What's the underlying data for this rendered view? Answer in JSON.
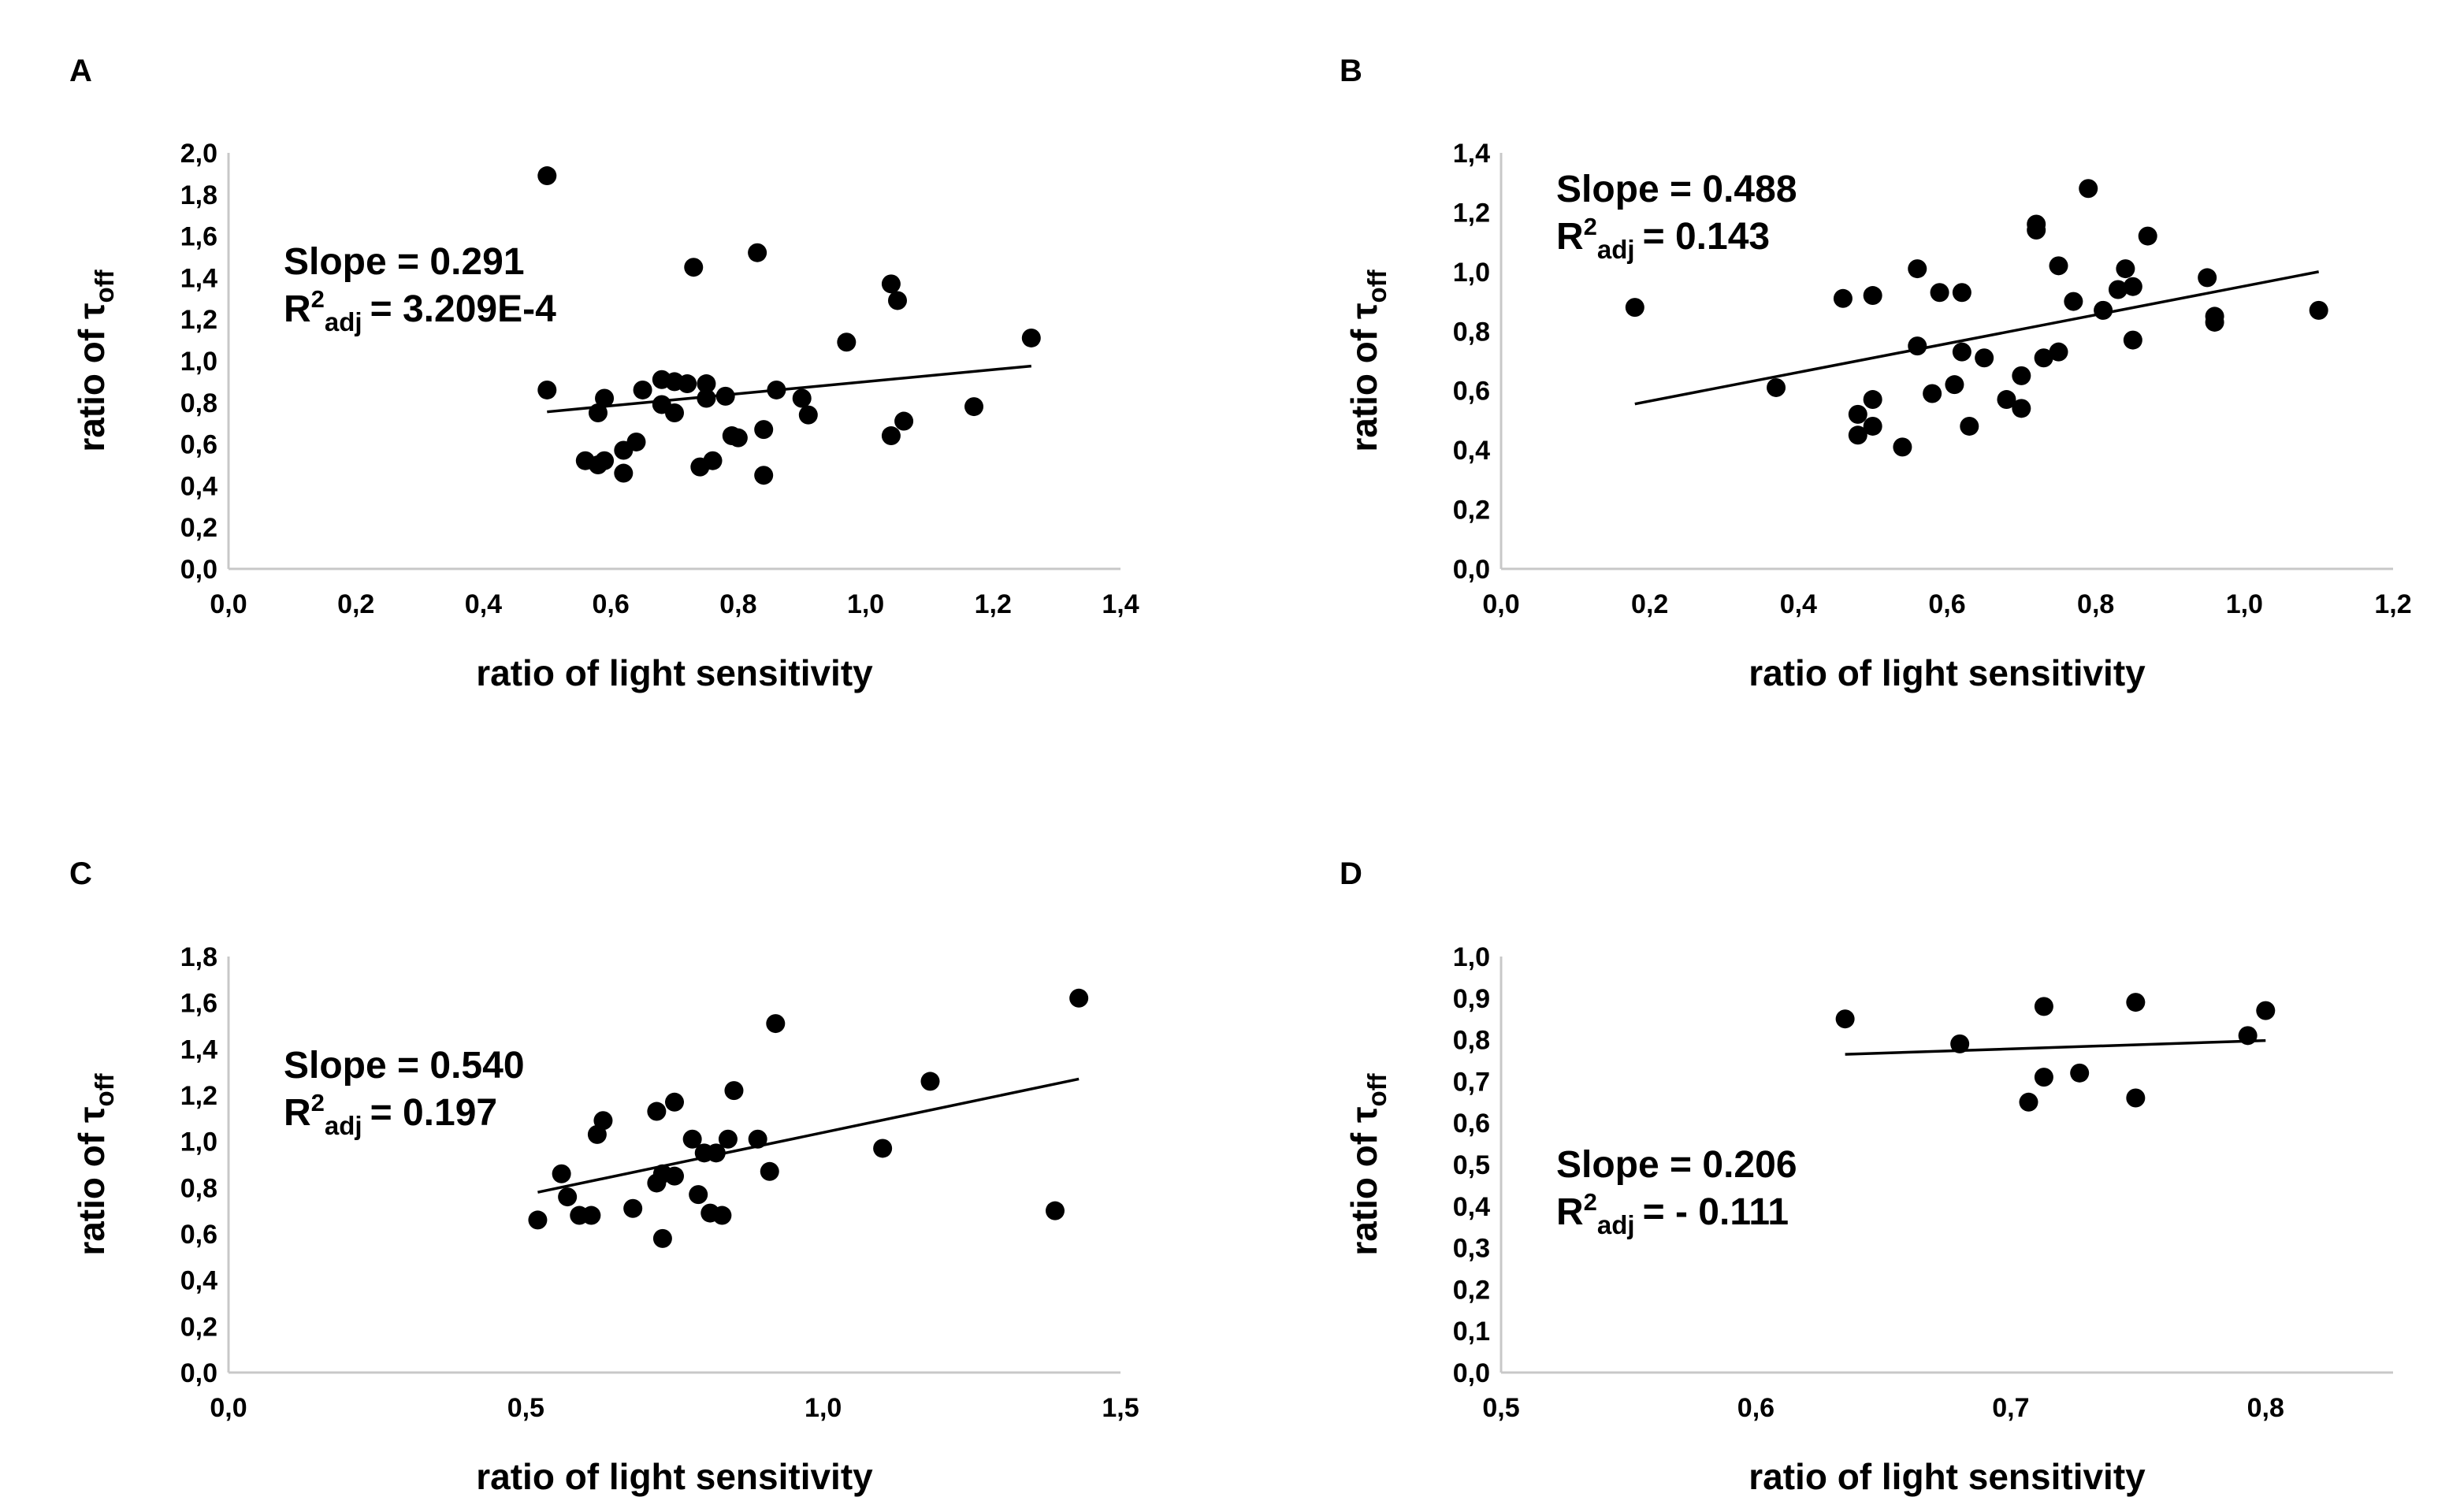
{
  "chart_data": [
    {
      "panel": "A",
      "type": "scatter",
      "xlabel": "ratio of light sensitivity",
      "ylabel": {
        "main": "ratio of τ",
        "sub": "off"
      },
      "xlim": [
        0,
        1.4
      ],
      "ylim": [
        0,
        2.0
      ],
      "xticks": [
        "0,0",
        "0,2",
        "0,4",
        "0,6",
        "0,8",
        "1,0",
        "1,2",
        "1,4"
      ],
      "yticks": [
        "0,0",
        "0,2",
        "0,4",
        "0,6",
        "0,8",
        "1,0",
        "1,2",
        "1,4",
        "1,6",
        "1,8",
        "2,0"
      ],
      "slope_text": "Slope = 0.291",
      "r2": {
        "label": "R",
        "sup": "2",
        "sub": "adj",
        "value": "= 3.209E-4"
      },
      "annot_pos": "upper-left",
      "trend": {
        "x": [
          0.5,
          1.26
        ],
        "y": [
          0.755,
          0.975
        ]
      },
      "points": [
        [
          0.5,
          1.89
        ],
        [
          0.5,
          0.86
        ],
        [
          0.56,
          0.52
        ],
        [
          0.58,
          0.5
        ],
        [
          0.58,
          0.75
        ],
        [
          0.59,
          0.52
        ],
        [
          0.59,
          0.82
        ],
        [
          0.62,
          0.46
        ],
        [
          0.62,
          0.57
        ],
        [
          0.64,
          0.61
        ],
        [
          0.65,
          0.86
        ],
        [
          0.68,
          0.79
        ],
        [
          0.68,
          0.91
        ],
        [
          0.7,
          0.9
        ],
        [
          0.7,
          0.75
        ],
        [
          0.72,
          0.89
        ],
        [
          0.73,
          1.45
        ],
        [
          0.74,
          0.49
        ],
        [
          0.75,
          0.89
        ],
        [
          0.75,
          0.82
        ],
        [
          0.76,
          0.52
        ],
        [
          0.78,
          0.83
        ],
        [
          0.79,
          0.64
        ],
        [
          0.8,
          0.63
        ],
        [
          0.83,
          1.52
        ],
        [
          0.84,
          0.45
        ],
        [
          0.84,
          0.67
        ],
        [
          0.86,
          0.86
        ],
        [
          0.9,
          0.82
        ],
        [
          0.91,
          0.74
        ],
        [
          0.97,
          1.09
        ],
        [
          1.04,
          1.37
        ],
        [
          1.04,
          0.64
        ],
        [
          1.05,
          1.29
        ],
        [
          1.06,
          0.71
        ],
        [
          1.17,
          0.78
        ],
        [
          1.26,
          1.11
        ]
      ]
    },
    {
      "panel": "B",
      "type": "scatter",
      "xlabel": "ratio of light sensitivity",
      "ylabel": {
        "main": "ratio of τ",
        "sub": "off"
      },
      "xlim": [
        0,
        1.2
      ],
      "ylim": [
        0,
        1.4
      ],
      "xticks": [
        "0,0",
        "0,2",
        "0,4",
        "0,6",
        "0,8",
        "1,0",
        "1,2"
      ],
      "yticks": [
        "0,0",
        "0,2",
        "0,4",
        "0,6",
        "0,8",
        "1,0",
        "1,2",
        "1,4"
      ],
      "slope_text": "Slope = 0.488",
      "r2": {
        "label": "R",
        "sup": "2",
        "sub": "adj",
        "value": "= 0.143"
      },
      "annot_pos": "upper-left",
      "trend": {
        "x": [
          0.18,
          1.1
        ],
        "y": [
          0.555,
          1.0
        ]
      },
      "points": [
        [
          0.18,
          0.88
        ],
        [
          0.37,
          0.61
        ],
        [
          0.46,
          0.91
        ],
        [
          0.48,
          0.45
        ],
        [
          0.48,
          0.52
        ],
        [
          0.5,
          0.48
        ],
        [
          0.5,
          0.57
        ],
        [
          0.5,
          0.92
        ],
        [
          0.54,
          0.41
        ],
        [
          0.56,
          0.75
        ],
        [
          0.56,
          1.01
        ],
        [
          0.58,
          0.59
        ],
        [
          0.59,
          0.93
        ],
        [
          0.61,
          0.62
        ],
        [
          0.62,
          0.93
        ],
        [
          0.62,
          0.73
        ],
        [
          0.63,
          0.48
        ],
        [
          0.65,
          0.71
        ],
        [
          0.68,
          0.57
        ],
        [
          0.7,
          0.54
        ],
        [
          0.7,
          0.65
        ],
        [
          0.72,
          1.16
        ],
        [
          0.72,
          1.14
        ],
        [
          0.73,
          0.71
        ],
        [
          0.75,
          0.73
        ],
        [
          0.75,
          1.02
        ],
        [
          0.77,
          0.9
        ],
        [
          0.79,
          1.28
        ],
        [
          0.81,
          0.87
        ],
        [
          0.83,
          0.94
        ],
        [
          0.84,
          1.01
        ],
        [
          0.85,
          0.95
        ],
        [
          0.85,
          0.77
        ],
        [
          0.87,
          1.12
        ],
        [
          0.95,
          0.98
        ],
        [
          0.96,
          0.85
        ],
        [
          0.96,
          0.83
        ],
        [
          1.1,
          0.87
        ]
      ]
    },
    {
      "panel": "C",
      "type": "scatter",
      "xlabel": "ratio of light sensitivity",
      "ylabel": {
        "main": "ratio of τ",
        "sub": "off"
      },
      "xlim": [
        0,
        1.5
      ],
      "ylim": [
        0,
        1.8
      ],
      "xticks": [
        "0,0",
        "0,5",
        "1,0",
        "1,5"
      ],
      "yticks": [
        "0,0",
        "0,2",
        "0,4",
        "0,6",
        "0,8",
        "1,0",
        "1,2",
        "1,4",
        "1,6",
        "1,8"
      ],
      "slope_text": "Slope = 0.540",
      "r2": {
        "label": "R",
        "sup": "2",
        "sub": "adj",
        "value": "= 0.197"
      },
      "annot_pos": "upper-left",
      "trend": {
        "x": [
          0.52,
          1.43
        ],
        "y": [
          0.78,
          1.27
        ]
      },
      "points": [
        [
          0.52,
          0.66
        ],
        [
          0.56,
          0.86
        ],
        [
          0.57,
          0.76
        ],
        [
          0.59,
          0.68
        ],
        [
          0.61,
          0.68
        ],
        [
          0.62,
          1.03
        ],
        [
          0.63,
          1.09
        ],
        [
          0.68,
          0.71
        ],
        [
          0.72,
          1.13
        ],
        [
          0.72,
          0.82
        ],
        [
          0.73,
          0.86
        ],
        [
          0.73,
          0.58
        ],
        [
          0.75,
          1.17
        ],
        [
          0.75,
          0.85
        ],
        [
          0.78,
          1.01
        ],
        [
          0.79,
          0.77
        ],
        [
          0.8,
          0.95
        ],
        [
          0.81,
          0.69
        ],
        [
          0.82,
          0.95
        ],
        [
          0.83,
          0.68
        ],
        [
          0.84,
          1.01
        ],
        [
          0.85,
          1.22
        ],
        [
          0.89,
          1.01
        ],
        [
          0.91,
          0.87
        ],
        [
          0.92,
          1.51
        ],
        [
          1.1,
          0.97
        ],
        [
          1.18,
          1.26
        ],
        [
          1.39,
          0.7
        ],
        [
          1.43,
          1.62
        ]
      ]
    },
    {
      "panel": "D",
      "type": "scatter",
      "xlabel": "ratio of light sensitivity",
      "ylabel": {
        "main": "ratio of τ",
        "sub": "off"
      },
      "xlim": [
        0.5,
        0.85
      ],
      "ylim": [
        0,
        1.0
      ],
      "xticks": [
        "0,5",
        "0,6",
        "0,7",
        "0,8"
      ],
      "xtick_values": [
        0.5,
        0.6,
        0.7,
        0.8
      ],
      "yticks": [
        "0,0",
        "0,1",
        "0,2",
        "0,3",
        "0,4",
        "0,5",
        "0,6",
        "0,7",
        "0,8",
        "0,9",
        "1,0"
      ],
      "slope_text": "Slope = 0.206",
      "r2": {
        "label": "R",
        "sup": "2",
        "sub": "adj",
        "value": "= - 0.111"
      },
      "annot_pos": "lower-left",
      "trend": {
        "x": [
          0.635,
          0.8
        ],
        "y": [
          0.765,
          0.798
        ]
      },
      "points": [
        [
          0.635,
          0.85
        ],
        [
          0.68,
          0.79
        ],
        [
          0.707,
          0.65
        ],
        [
          0.713,
          0.88
        ],
        [
          0.713,
          0.71
        ],
        [
          0.727,
          0.72
        ],
        [
          0.749,
          0.89
        ],
        [
          0.749,
          0.66
        ],
        [
          0.793,
          0.81
        ],
        [
          0.8,
          0.87
        ]
      ]
    }
  ]
}
